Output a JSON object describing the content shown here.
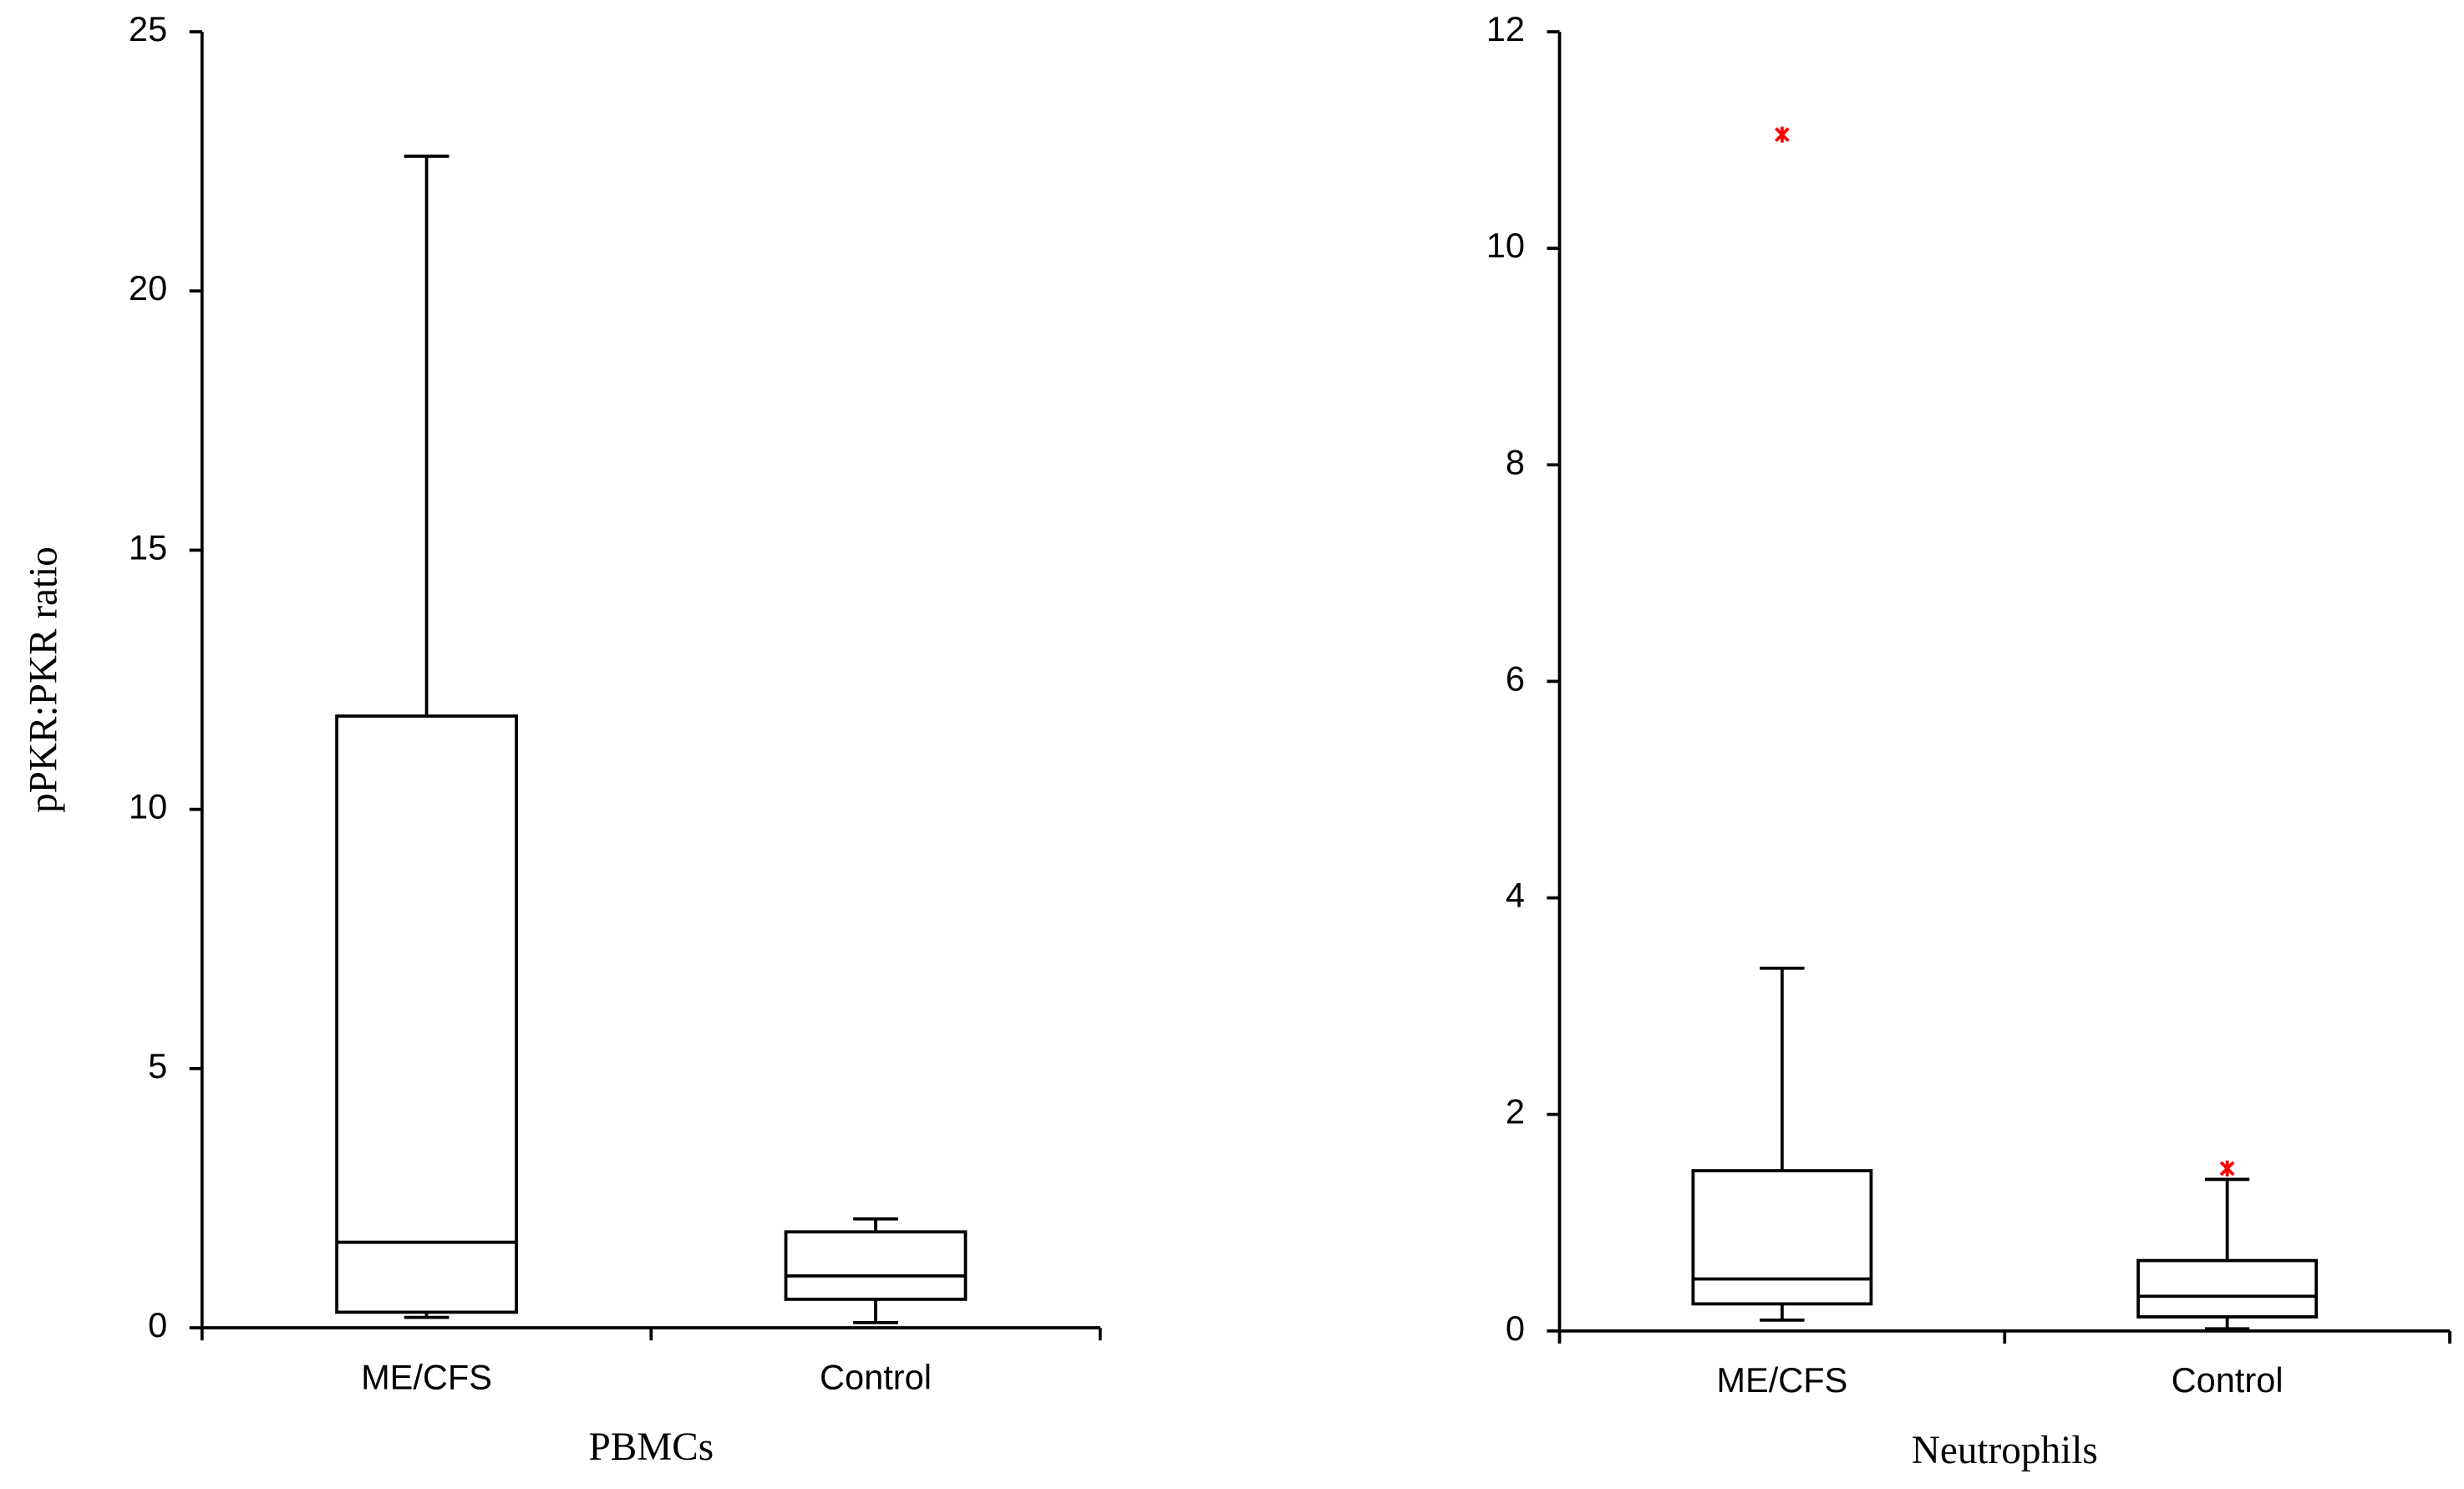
{
  "chart_data": [
    {
      "type": "box",
      "x_label": "PBMCs",
      "y_label": "pPKR:PKR ratio",
      "categories": [
        "ME/CFS",
        "Control"
      ],
      "boxes": [
        {
          "min": 0.2,
          "q1": 0.3,
          "median": 1.65,
          "q3": 11.8,
          "max": 22.6,
          "outliers": []
        },
        {
          "min": 0.1,
          "q1": 0.55,
          "median": 1.0,
          "q3": 1.85,
          "max": 2.1,
          "outliers": []
        }
      ],
      "color": "#000000",
      "outlier_color": "#ff0000",
      "ylim": [
        0,
        25
      ],
      "yticks": [
        0,
        5,
        10,
        15,
        20,
        25
      ],
      "grid": false
    },
    {
      "type": "box",
      "x_label": "Neutrophils",
      "categories": [
        "ME/CFS",
        "Control"
      ],
      "boxes": [
        {
          "min": 0.1,
          "q1": 0.25,
          "median": 0.48,
          "q3": 1.48,
          "max": 3.35,
          "outliers": [
            11.05
          ]
        },
        {
          "min": 0.02,
          "q1": 0.13,
          "median": 0.32,
          "q3": 0.65,
          "max": 1.4,
          "outliers": [
            1.5
          ]
        }
      ],
      "color": "#000000",
      "outlier_color": "#ff0000",
      "ylim": [
        0,
        12
      ],
      "yticks": [
        0,
        2,
        4,
        6,
        8,
        10,
        12
      ],
      "grid": false
    }
  ]
}
